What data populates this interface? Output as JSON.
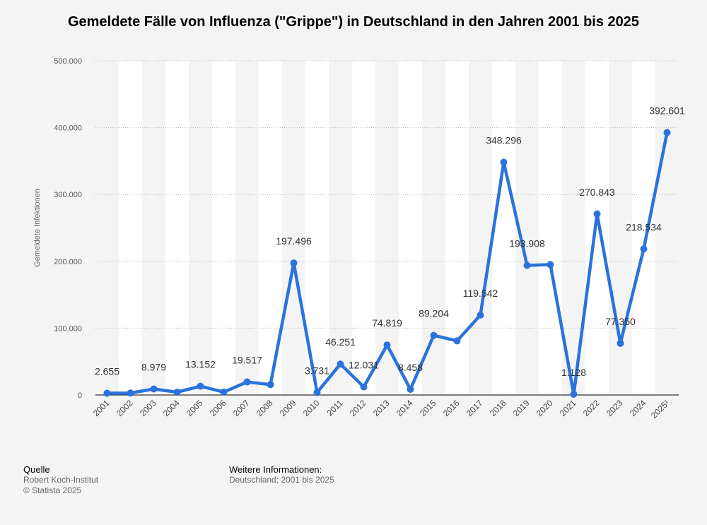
{
  "title": "Gemeldete Fälle von Influenza (\"Grippe\") in Deutschland in den Jahren 2001 bis 2025",
  "chart_data": {
    "type": "line",
    "title": "Gemeldete Fälle von Influenza (\"Grippe\") in Deutschland in den Jahren 2001 bis 2025",
    "xlabel": "",
    "ylabel": "Gemeldete Infektionen",
    "ylim": [
      0,
      500000
    ],
    "yticks": [
      0,
      100000,
      200000,
      300000,
      400000,
      500000
    ],
    "ytick_labels": [
      "0",
      "100.000",
      "200.000",
      "300.000",
      "400.000",
      "500.000"
    ],
    "grid": true,
    "line_color": "#2a73dc",
    "categories": [
      "2001",
      "2002",
      "2003",
      "2004",
      "2005",
      "2006",
      "2007",
      "2008",
      "2009",
      "2010",
      "2011",
      "2012",
      "2013",
      "2014",
      "2015",
      "2016",
      "2017",
      "2018",
      "2019",
      "2020",
      "2021",
      "2022",
      "2023",
      "2024",
      "2025¹"
    ],
    "values": [
      2655,
      2900,
      8979,
      4200,
      13152,
      4300,
      19517,
      15500,
      197496,
      3731,
      46251,
      12031,
      74819,
      8458,
      89204,
      81000,
      119542,
      348296,
      193908,
      195000,
      1128,
      270843,
      77350,
      218534,
      392601
    ],
    "data_labels": [
      "2.655",
      "",
      "8.979",
      "",
      "13.152",
      "",
      "19.517",
      "",
      "197.496",
      "3.731",
      "46.251",
      "12.031",
      "74.819",
      "8.458",
      "89.204",
      "",
      "119.542",
      "348.296",
      "193.908",
      "",
      "1.128",
      "270.843",
      "77.350",
      "218.534",
      "392.601"
    ]
  },
  "footer": {
    "source_heading": "Quelle",
    "source_name": "Robert Koch-Institut",
    "copyright": "© Statista 2025",
    "info_heading": "Weitere Informationen:",
    "info_text": "Deutschland; 2001 bis 2025"
  }
}
